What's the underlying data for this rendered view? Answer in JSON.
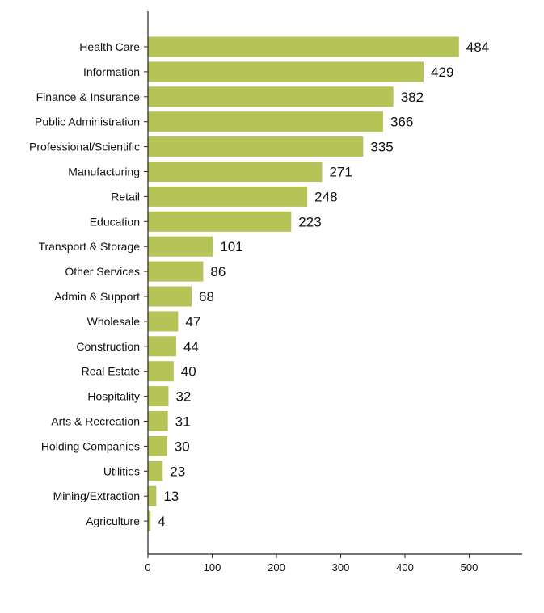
{
  "chart_data": {
    "type": "bar",
    "orientation": "horizontal",
    "title": "",
    "xlabel": "",
    "ylabel": "",
    "categories": [
      "Health Care",
      "Information",
      "Finance & Insurance",
      "Public Administration",
      "Professional/Scientific",
      "Manufacturing",
      "Retail",
      "Education",
      "Transport & Storage",
      "Other Services",
      "Admin & Support",
      "Wholesale",
      "Construction",
      "Real Estate",
      "Hospitality",
      "Arts & Recreation",
      "Holding Companies",
      "Utilities",
      "Mining/Extraction",
      "Agriculture"
    ],
    "values": [
      484,
      429,
      382,
      366,
      335,
      271,
      248,
      223,
      101,
      86,
      68,
      47,
      44,
      40,
      32,
      31,
      30,
      23,
      13,
      4
    ],
    "xlim": [
      0,
      580
    ],
    "xticks": [
      0,
      100,
      200,
      300,
      400,
      500
    ],
    "grid": false,
    "legend": "none",
    "bar_color": "#b5c357",
    "data_labels": true
  }
}
